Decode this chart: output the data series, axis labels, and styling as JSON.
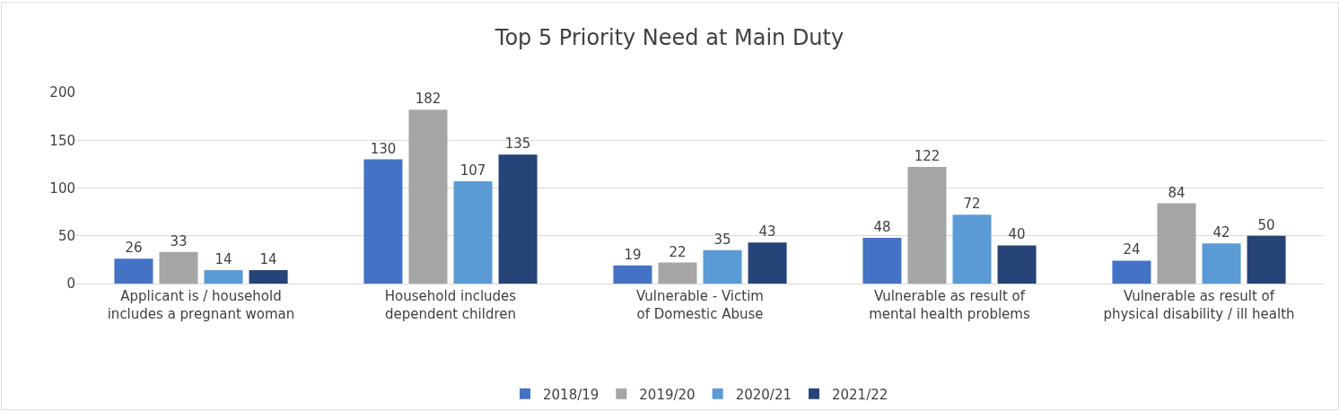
{
  "chart_data": {
    "type": "bar",
    "title": "Top 5 Priority Need at Main Duty",
    "categories": [
      "Applicant is / household includes a pregnant woman",
      "Household includes dependent children",
      "Vulnerable - Victim of Domestic Abuse",
      "Vulnerable as result of mental health problems",
      "Vulnerable as result of physical disability / ill health"
    ],
    "series": [
      {
        "name": "2018/19",
        "color": "#4472c4",
        "values": [
          26,
          130,
          19,
          48,
          24
        ]
      },
      {
        "name": "2019/20",
        "color": "#a5a5a5",
        "values": [
          33,
          182,
          22,
          122,
          84
        ]
      },
      {
        "name": "2020/21",
        "color": "#5b9bd5",
        "values": [
          14,
          107,
          35,
          72,
          42
        ]
      },
      {
        "name": "2021/22",
        "color": "#264478",
        "values": [
          14,
          135,
          43,
          40,
          50
        ]
      }
    ],
    "ylim": [
      0,
      200
    ],
    "yticks": [
      0,
      50,
      100,
      150,
      200
    ],
    "grid": "y",
    "legend": "bottom",
    "data_labels": true
  }
}
